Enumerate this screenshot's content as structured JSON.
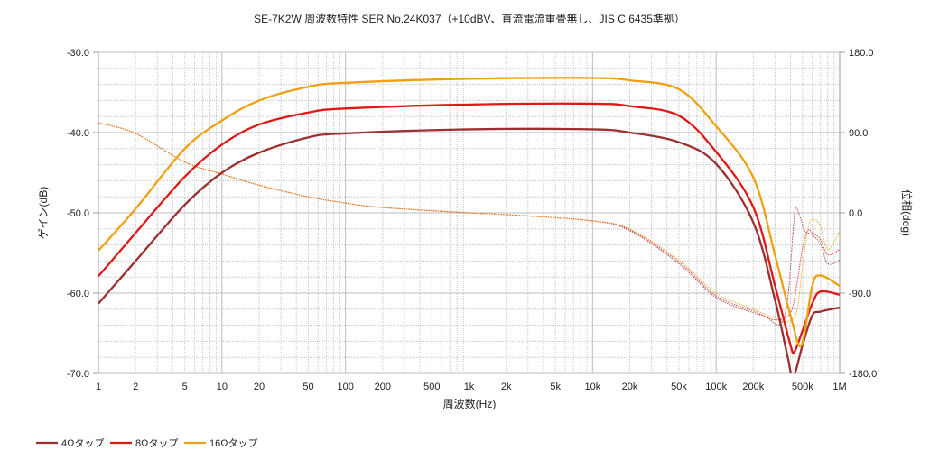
{
  "chart_data": {
    "type": "line",
    "title": "SE-7K2W 周波数特性 SER No.24K037（+10dBV、直流電流重畳無し、JIS C 6435準拠）",
    "xlabel": "周波数(Hz)",
    "ylabel": "ゲイン(dB)",
    "y2label": "位相(deg)",
    "xscale": "log",
    "xlim": [
      1,
      1000000
    ],
    "ylim": [
      -70,
      -30
    ],
    "y2lim": [
      -180,
      180
    ],
    "grid": true,
    "legend_position": "bottom-left",
    "x_ticks": [
      {
        "v": 1,
        "l": "1"
      },
      {
        "v": 2,
        "l": "2"
      },
      {
        "v": 5,
        "l": "5"
      },
      {
        "v": 10,
        "l": "10"
      },
      {
        "v": 20,
        "l": "20"
      },
      {
        "v": 50,
        "l": "50"
      },
      {
        "v": 100,
        "l": "100"
      },
      {
        "v": 200,
        "l": "200"
      },
      {
        "v": 500,
        "l": "500"
      },
      {
        "v": 1000,
        "l": "1k"
      },
      {
        "v": 2000,
        "l": "2k"
      },
      {
        "v": 5000,
        "l": "5k"
      },
      {
        "v": 10000,
        "l": "10k"
      },
      {
        "v": 20000,
        "l": "20k"
      },
      {
        "v": 50000,
        "l": "50k"
      },
      {
        "v": 100000,
        "l": "100k"
      },
      {
        "v": 200000,
        "l": "200k"
      },
      {
        "v": 500000,
        "l": "500k"
      },
      {
        "v": 1000000,
        "l": "1M"
      }
    ],
    "y_ticks": [
      {
        "v": -30,
        "l": "-30.0"
      },
      {
        "v": -40,
        "l": "-40.0"
      },
      {
        "v": -50,
        "l": "-50.0"
      },
      {
        "v": -60,
        "l": "-60.0"
      },
      {
        "v": -70,
        "l": "-70.0"
      }
    ],
    "y2_ticks": [
      {
        "v": 180,
        "l": "180.0"
      },
      {
        "v": 90,
        "l": "90.0"
      },
      {
        "v": 0,
        "l": "0.0"
      },
      {
        "v": -90,
        "l": "-90.0"
      },
      {
        "v": -180,
        "l": "-180.0"
      }
    ],
    "series": [
      {
        "name": "4Ωタップ",
        "color": "#9b3030",
        "gain": [
          [
            1,
            -61.3
          ],
          [
            2,
            -56
          ],
          [
            5,
            -49
          ],
          [
            10,
            -45
          ],
          [
            20,
            -42.5
          ],
          [
            50,
            -40.6
          ],
          [
            100,
            -40.1
          ],
          [
            1000,
            -39.6
          ],
          [
            10000,
            -39.6
          ],
          [
            20000,
            -40
          ],
          [
            50000,
            -41.2
          ],
          [
            100000,
            -43.9
          ],
          [
            200000,
            -51.2
          ],
          [
            300000,
            -60.9
          ],
          [
            380000,
            -68
          ],
          [
            420000,
            -70.5
          ],
          [
            500000,
            -66.5
          ],
          [
            600000,
            -62.8
          ],
          [
            700000,
            -62.3
          ],
          [
            1000000,
            -61.8
          ]
        ],
        "phase": [
          [
            1,
            101
          ],
          [
            2,
            89
          ],
          [
            5,
            57
          ],
          [
            10,
            43.5
          ],
          [
            20,
            31
          ],
          [
            50,
            18
          ],
          [
            100,
            11
          ],
          [
            200,
            6
          ],
          [
            1000,
            0
          ],
          [
            2000,
            -2
          ],
          [
            10000,
            -9
          ],
          [
            20000,
            -20
          ],
          [
            50000,
            -57
          ],
          [
            100000,
            -95
          ],
          [
            200000,
            -112
          ],
          [
            250000,
            -116
          ],
          [
            330000,
            -125
          ],
          [
            380000,
            -95
          ],
          [
            420000,
            -20
          ],
          [
            440000,
            5
          ],
          [
            480000,
            -5
          ],
          [
            520000,
            -20
          ],
          [
            600000,
            -25
          ],
          [
            700000,
            -35
          ],
          [
            800000,
            -57
          ],
          [
            1000000,
            -53
          ]
        ]
      },
      {
        "name": "8Ωタップ",
        "color": "#e01818",
        "gain": [
          [
            1,
            -57.9
          ],
          [
            2,
            -52.5
          ],
          [
            5,
            -45.5
          ],
          [
            10,
            -41.5
          ],
          [
            20,
            -39
          ],
          [
            50,
            -37.5
          ],
          [
            100,
            -37
          ],
          [
            1000,
            -36.5
          ],
          [
            10000,
            -36.4
          ],
          [
            20000,
            -36.7
          ],
          [
            50000,
            -37.9
          ],
          [
            100000,
            -42.4
          ],
          [
            200000,
            -49.3
          ],
          [
            300000,
            -59.1
          ],
          [
            400000,
            -66.5
          ],
          [
            430000,
            -67.3
          ],
          [
            500000,
            -64.7
          ],
          [
            600000,
            -61.3
          ],
          [
            700000,
            -59.8
          ],
          [
            1000000,
            -60.2
          ]
        ],
        "phase": [
          [
            1,
            101
          ],
          [
            2,
            89
          ],
          [
            5,
            57
          ],
          [
            10,
            43.5
          ],
          [
            20,
            31
          ],
          [
            50,
            18
          ],
          [
            100,
            11
          ],
          [
            200,
            6
          ],
          [
            1000,
            0
          ],
          [
            2000,
            -2
          ],
          [
            10000,
            -9
          ],
          [
            20000,
            -19
          ],
          [
            50000,
            -55
          ],
          [
            100000,
            -93
          ],
          [
            200000,
            -110
          ],
          [
            300000,
            -120
          ],
          [
            400000,
            -112
          ],
          [
            450000,
            -80
          ],
          [
            500000,
            -40
          ],
          [
            550000,
            -20
          ],
          [
            600000,
            -22
          ],
          [
            700000,
            -30
          ],
          [
            800000,
            -47
          ],
          [
            1000000,
            -41
          ]
        ]
      },
      {
        "name": "16Ωタップ",
        "color": "#f0a010",
        "gain": [
          [
            1,
            -54.7
          ],
          [
            2,
            -49.5
          ],
          [
            5,
            -42
          ],
          [
            10,
            -38.5
          ],
          [
            20,
            -36
          ],
          [
            50,
            -34.3
          ],
          [
            100,
            -33.8
          ],
          [
            1000,
            -33.3
          ],
          [
            10000,
            -33.2
          ],
          [
            20000,
            -33.5
          ],
          [
            50000,
            -34.6
          ],
          [
            100000,
            -39.2
          ],
          [
            200000,
            -45.6
          ],
          [
            300000,
            -55.3
          ],
          [
            400000,
            -62.8
          ],
          [
            490000,
            -66.5
          ],
          [
            600000,
            -59.1
          ],
          [
            700000,
            -57.8
          ],
          [
            1000000,
            -59.1
          ]
        ],
        "phase": [
          [
            1,
            101
          ],
          [
            2,
            89
          ],
          [
            5,
            57
          ],
          [
            10,
            43.5
          ],
          [
            20,
            31
          ],
          [
            50,
            18
          ],
          [
            100,
            11
          ],
          [
            200,
            6
          ],
          [
            1000,
            0
          ],
          [
            2000,
            -2
          ],
          [
            10000,
            -9
          ],
          [
            20000,
            -18
          ],
          [
            50000,
            -53
          ],
          [
            100000,
            -90
          ],
          [
            200000,
            -108
          ],
          [
            300000,
            -118
          ],
          [
            380000,
            -122
          ],
          [
            450000,
            -110
          ],
          [
            500000,
            -60
          ],
          [
            550000,
            -20
          ],
          [
            600000,
            -7
          ],
          [
            700000,
            -15
          ],
          [
            800000,
            -41
          ],
          [
            1000000,
            -21
          ]
        ]
      }
    ]
  }
}
